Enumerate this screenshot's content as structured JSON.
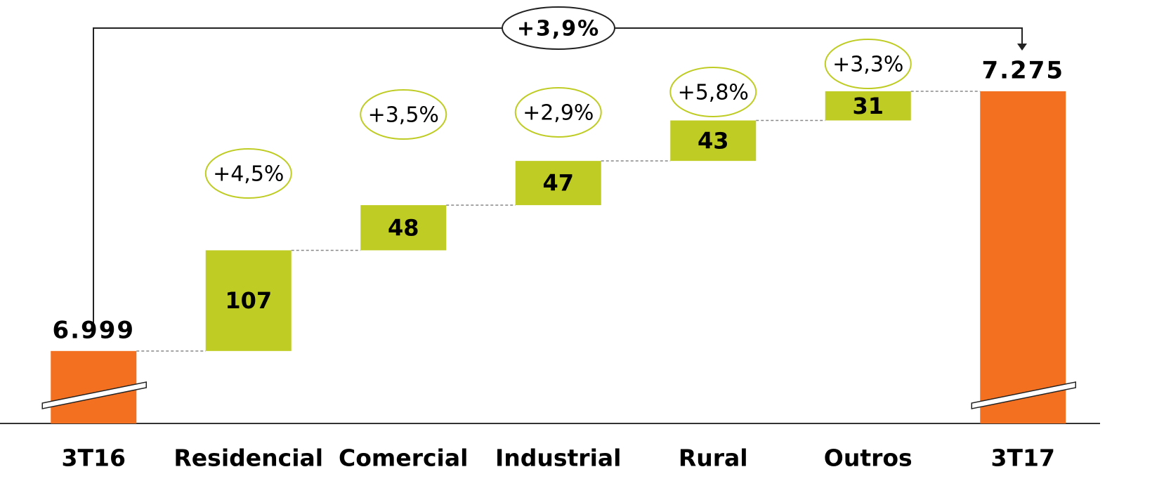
{
  "chart_data": {
    "type": "waterfall",
    "categories": [
      "3T16",
      "Residencial",
      "Comercial",
      "Industrial",
      "Rural",
      "Outros",
      "3T17"
    ],
    "values": [
      6999,
      107,
      48,
      47,
      43,
      31,
      7275
    ],
    "value_labels": [
      "6.999",
      "107",
      "48",
      "47",
      "43",
      "31",
      "7.275"
    ],
    "kinds": [
      "total",
      "delta",
      "delta",
      "delta",
      "delta",
      "delta",
      "total"
    ],
    "growth_labels": [
      null,
      "+4,5%",
      "+3,5%",
      "+2,9%",
      "+5,8%",
      "+3,3%",
      null
    ],
    "total_growth_label": "+3,9%",
    "total_color": "#f37021",
    "delta_color": "#bfcc24",
    "ylim": [
      6922,
      7372
    ],
    "axis_break": true
  }
}
